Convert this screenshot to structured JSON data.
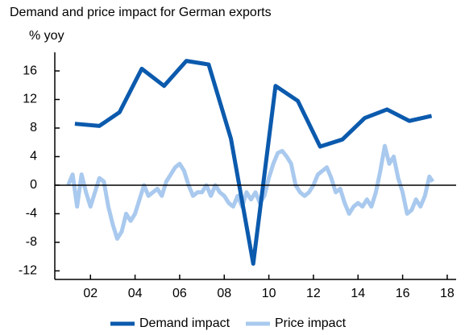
{
  "chart_data": {
    "type": "line",
    "title": "Demand and price impact for German exports",
    "y_label": "% yoy",
    "xlim": [
      2000.4,
      2018.4
    ],
    "xticks": [
      {
        "value": 2002,
        "label": "02"
      },
      {
        "value": 2004,
        "label": "04"
      },
      {
        "value": 2006,
        "label": "06"
      },
      {
        "value": 2008,
        "label": "08"
      },
      {
        "value": 2010,
        "label": "10"
      },
      {
        "value": 2012,
        "label": "12"
      },
      {
        "value": 2014,
        "label": "14"
      },
      {
        "value": 2016,
        "label": "16"
      },
      {
        "value": 2018,
        "label": "18"
      }
    ],
    "ylim": [
      -13.2,
      18.6
    ],
    "yticks": [
      -12,
      -8,
      -4,
      0,
      4,
      8,
      12,
      16
    ],
    "zero_line": true,
    "legend": "bottom",
    "series": [
      {
        "name": "Demand impact",
        "color": "#0b5aad",
        "width": 5,
        "x": [
          2001.3,
          2002.4,
          2003.3,
          2004.3,
          2005.3,
          2006.3,
          2007.3,
          2008.3,
          2009.3,
          2010.3,
          2011.3,
          2012.3,
          2013.3,
          2014.3,
          2015.3,
          2016.3,
          2017.3
        ],
        "values": [
          8.6,
          8.3,
          10.2,
          16.3,
          13.9,
          17.4,
          16.9,
          6.5,
          -11,
          13.9,
          11.8,
          5.4,
          6.4,
          9.4,
          10.6,
          9.0,
          9.7
        ]
      },
      {
        "name": "Price impact",
        "color": "#a9c9ee",
        "width": 5,
        "x": [
          2001.0,
          2001.2,
          2001.4,
          2001.6,
          2001.8,
          2002.0,
          2002.2,
          2002.4,
          2002.6,
          2002.8,
          2003.0,
          2003.2,
          2003.4,
          2003.6,
          2003.8,
          2004.0,
          2004.2,
          2004.4,
          2004.6,
          2004.8,
          2005.0,
          2005.2,
          2005.4,
          2005.6,
          2005.8,
          2006.0,
          2006.2,
          2006.4,
          2006.6,
          2006.8,
          2007.0,
          2007.2,
          2007.4,
          2007.6,
          2007.8,
          2008.0,
          2008.2,
          2008.4,
          2008.6,
          2008.8,
          2009.0,
          2009.2,
          2009.4,
          2009.6,
          2009.8,
          2010.0,
          2010.2,
          2010.4,
          2010.6,
          2010.8,
          2011.0,
          2011.2,
          2011.4,
          2011.6,
          2011.8,
          2012.0,
          2012.2,
          2012.4,
          2012.6,
          2012.8,
          2013.0,
          2013.2,
          2013.4,
          2013.6,
          2013.8,
          2014.0,
          2014.2,
          2014.4,
          2014.6,
          2014.8,
          2015.0,
          2015.2,
          2015.4,
          2015.6,
          2015.8,
          2016.0,
          2016.2,
          2016.4,
          2016.6,
          2016.8,
          2017.0,
          2017.2,
          2017.35
        ],
        "values": [
          0,
          1.5,
          -3,
          1.5,
          -1,
          -3,
          -1,
          1,
          0.5,
          -3,
          -5.5,
          -7.5,
          -6.5,
          -4,
          -5,
          -4,
          -2,
          0,
          -1.5,
          -1,
          -0.5,
          -1.5,
          0.5,
          1.5,
          2.5,
          3,
          2,
          0,
          -1.5,
          -1,
          -1,
          0,
          -1.5,
          0,
          -1,
          -1.5,
          -2.5,
          -3,
          -1.5,
          -3,
          -1,
          -2,
          -1,
          -2.5,
          -1.5,
          1,
          3,
          4.5,
          4.8,
          4,
          3,
          0,
          -1,
          -1.5,
          -1,
          0,
          1.5,
          2,
          2.5,
          1,
          -1,
          -0.5,
          -2.5,
          -4,
          -3,
          -2.5,
          -3,
          -2,
          -3,
          -1,
          2,
          5.5,
          3,
          4,
          1,
          -1,
          -4,
          -3.5,
          -2,
          -3,
          -1.5,
          1.2,
          0.5
        ]
      }
    ]
  }
}
